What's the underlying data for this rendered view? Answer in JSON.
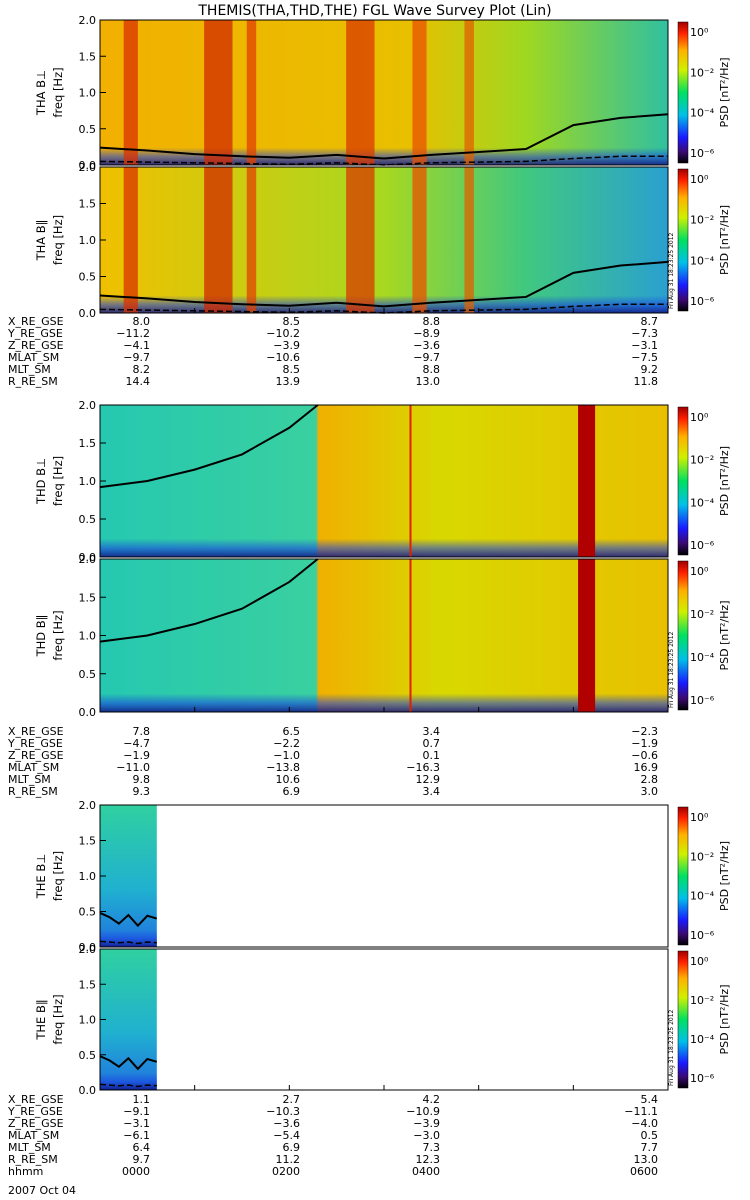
{
  "title": "THEMIS(THA,THD,THE) FGL Wave Survey Plot (Lin)",
  "colorbar": {
    "label": "PSD [nT²/Hz]",
    "ticks": [
      "10⁰",
      "10⁻²",
      "10⁻⁴",
      "10⁻⁶"
    ],
    "stamp": "Fri Aug 31 18:23:25 2012"
  },
  "colors": {
    "probe_A_bg": "#e6a400",
    "probe_D_bg": "#bfe000",
    "probe_E_bg": "#1fa9c9",
    "saturated": "#b00000"
  },
  "chart_data": [
    {
      "type": "heatmap",
      "title": "THEMIS(THA,THD,THE) FGL Wave Survey Plot (Lin)",
      "probe": "THA",
      "panels": [
        {
          "name": "THA B⊥",
          "ylabel": "freq [Hz]"
        },
        {
          "name": "THA B∥",
          "ylabel": "freq [Hz]"
        }
      ],
      "ylim": [
        0,
        2.0
      ],
      "yticks": [
        "2.0",
        "1.5",
        "1.0",
        "0.5",
        "0.0"
      ],
      "xlim_hours": [
        0,
        6
      ],
      "gyrofreq_hz": {
        "hours": [
          0,
          0.5,
          1,
          1.5,
          2,
          2.5,
          3,
          3.5,
          4,
          4.5,
          5,
          5.5,
          6
        ],
        "solid": [
          0.24,
          0.2,
          0.15,
          0.12,
          0.1,
          0.14,
          0.09,
          0.14,
          0.18,
          0.22,
          0.55,
          0.65,
          0.7
        ],
        "dashed": [
          0.05,
          0.04,
          0.03,
          0.02,
          0.01,
          0.03,
          0.0,
          0.03,
          0.04,
          0.05,
          0.09,
          0.12,
          0.12
        ]
      },
      "ephemeris": [
        {
          "label": "X_RE_GSE",
          "values": [
            "8.0",
            "8.5",
            "8.8",
            "8.7"
          ]
        },
        {
          "label": "Y_RE_GSE",
          "values": [
            "−11.2",
            "−10.2",
            "−8.9",
            "−7.3"
          ]
        },
        {
          "label": "Z_RE_GSE",
          "values": [
            "−4.1",
            "−3.9",
            "−3.6",
            "−3.1"
          ]
        },
        {
          "label": "MLAT_SM",
          "values": [
            "−9.7",
            "−10.6",
            "−9.7",
            "−7.5"
          ]
        },
        {
          "label": "MLT_SM",
          "values": [
            "8.2",
            "8.5",
            "8.8",
            "9.2"
          ]
        },
        {
          "label": "R_RE_SM",
          "values": [
            "14.4",
            "13.9",
            "13.0",
            "11.8"
          ]
        }
      ]
    },
    {
      "type": "heatmap",
      "probe": "THD",
      "panels": [
        {
          "name": "THD B⊥",
          "ylabel": "freq [Hz]"
        },
        {
          "name": "THD B∥",
          "ylabel": "freq [Hz]"
        }
      ],
      "ylim": [
        0,
        2.0
      ],
      "yticks": [
        "2.0",
        "1.5",
        "1.0",
        "0.5",
        "0.0"
      ],
      "xlim_hours": [
        0,
        6
      ],
      "gyrofreq_hz": {
        "hours": [
          0,
          0.5,
          1,
          1.5,
          2,
          2.3
        ],
        "solid": [
          0.92,
          1.0,
          1.15,
          1.35,
          1.7,
          2.0
        ]
      },
      "ephemeris": [
        {
          "label": "X_RE_GSE",
          "values": [
            "7.8",
            "6.5",
            "3.4",
            "−2.3"
          ]
        },
        {
          "label": "Y_RE_GSE",
          "values": [
            "−4.7",
            "−2.2",
            "0.7",
            "−1.9"
          ]
        },
        {
          "label": "Z_RE_GSE",
          "values": [
            "−1.9",
            "−1.0",
            "0.1",
            "−0.6"
          ]
        },
        {
          "label": "MLAT_SM",
          "values": [
            "−11.0",
            "−13.8",
            "−16.3",
            "16.9"
          ]
        },
        {
          "label": "MLT_SM",
          "values": [
            "9.8",
            "10.6",
            "12.9",
            "2.8"
          ]
        },
        {
          "label": "R_RE_SM",
          "values": [
            "9.3",
            "6.9",
            "3.4",
            "3.0"
          ]
        }
      ]
    },
    {
      "type": "heatmap",
      "probe": "THE",
      "panels": [
        {
          "name": "THE B⊥",
          "ylabel": "freq [Hz]"
        },
        {
          "name": "THE B∥",
          "ylabel": "freq [Hz]"
        }
      ],
      "ylim": [
        0,
        2.0
      ],
      "yticks": [
        "2.0",
        "1.5",
        "1.0",
        "0.5",
        "0.0"
      ],
      "xlim_hours": [
        0,
        6
      ],
      "data_end_hours": 0.6,
      "gyrofreq_hz": {
        "hours": [
          0,
          0.1,
          0.2,
          0.3,
          0.4,
          0.5,
          0.6
        ],
        "solid": [
          0.48,
          0.42,
          0.33,
          0.45,
          0.3,
          0.44,
          0.4
        ],
        "dashed": [
          0.08,
          0.07,
          0.06,
          0.07,
          0.05,
          0.07,
          0.06
        ]
      },
      "ephemeris": [
        {
          "label": "X_RE_GSE",
          "values": [
            "1.1",
            "2.7",
            "4.2",
            "5.4"
          ]
        },
        {
          "label": "Y_RE_GSE",
          "values": [
            "−9.1",
            "−10.3",
            "−10.9",
            "−11.1"
          ]
        },
        {
          "label": "Z_RE_GSE",
          "values": [
            "−3.1",
            "−3.6",
            "−3.9",
            "−4.0"
          ]
        },
        {
          "label": "MLAT_SM",
          "values": [
            "−6.1",
            "−5.4",
            "−3.0",
            "0.5"
          ]
        },
        {
          "label": "MLT_SM",
          "values": [
            "6.4",
            "6.9",
            "7.3",
            "7.7"
          ]
        },
        {
          "label": "R_RE_SM",
          "values": [
            "9.7",
            "11.2",
            "12.3",
            "13.0"
          ]
        },
        {
          "label": "hhmm",
          "values": [
            "0000",
            "0200",
            "0400",
            "0600"
          ]
        }
      ],
      "date": "2007 Oct 04"
    }
  ]
}
